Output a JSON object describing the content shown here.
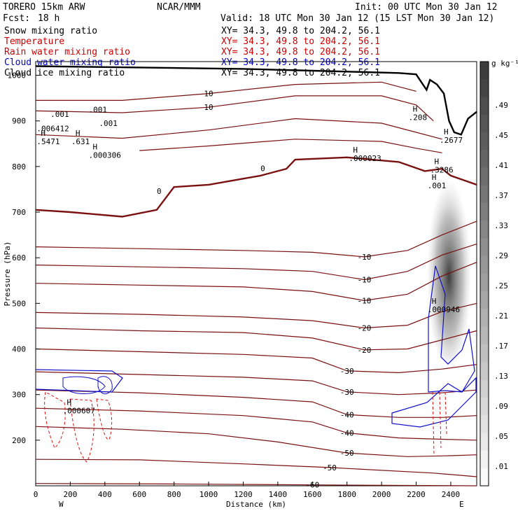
{
  "header": {
    "model": "TORERO  15km ARW",
    "org": "NCAR/MMM",
    "init": "Init: 00 UTC Mon 30 Jan 12",
    "fcst_label": "Fcst:",
    "fcst_value": "18 h",
    "valid": "Valid: 18 UTC Mon 30 Jan 12 (15 LST Mon 30 Jan 12)"
  },
  "legend_rows": [
    {
      "name": "Snow mixing ratio",
      "xy": "XY=  34.3, 49.8 to 204.2, 56.1",
      "color": "#000000"
    },
    {
      "name": "Temperature",
      "xy": "XY=  34.3, 49.8 to 204.2, 56.1",
      "color": "#cc0000"
    },
    {
      "name": "Rain water mixing ratio",
      "xy": "XY=  34.3, 49.8 to 204.2, 56.1",
      "color": "#cc0000"
    },
    {
      "name": "Cloud water mixing ratio",
      "xy": "XY=  34.3, 49.8 to 204.2, 56.1",
      "color": "#0000cc"
    },
    {
      "name": "Cloud ice mixing ratio",
      "xy": "XY=  34.3, 49.8 to 204.2, 56.1",
      "color": "#000000"
    }
  ],
  "colors": {
    "temperature": "#7a1010",
    "zero_isotherm": "#7a1010",
    "cloud_water": "#1010cc",
    "rain_water": "#dd1111",
    "terrain": "#000000"
  },
  "chart_data": {
    "type": "contour",
    "xlabel": "Distance (km)",
    "ylabel": "Pressure (hPa)",
    "xlim": [
      0,
      2550
    ],
    "ylim": [
      1030,
      100
    ],
    "x_ticks": [
      0,
      200,
      400,
      600,
      800,
      1000,
      1200,
      1400,
      1600,
      1800,
      2000,
      2200,
      2400
    ],
    "y_ticks": [
      200,
      300,
      400,
      500,
      600,
      700,
      800,
      900,
      1000
    ],
    "x_end_labels": {
      "left": "W",
      "right": "E"
    },
    "colorbar": {
      "unit": "g kg⁻¹",
      "labels": [
        ".49",
        ".45",
        ".41",
        ".37",
        ".33",
        ".29",
        ".25",
        ".21",
        ".17",
        ".13",
        ".09",
        ".05",
        ".01"
      ]
    },
    "temperature_contours": [
      {
        "label": "-60",
        "points": [
          [
            0,
            105
          ],
          [
            800,
            104
          ],
          [
            1600,
            102
          ],
          [
            2550,
            100
          ]
        ]
      },
      {
        "label": "-50",
        "points": [
          [
            0,
            158
          ],
          [
            600,
            157
          ],
          [
            1200,
            148
          ],
          [
            1700,
            140
          ],
          [
            2300,
            128
          ],
          [
            2550,
            120
          ]
        ]
      },
      {
        "label": "-50",
        "points": [
          [
            0,
            230
          ],
          [
            500,
            224
          ],
          [
            1000,
            214
          ],
          [
            1400,
            196
          ],
          [
            1800,
            172
          ],
          [
            2150,
            164
          ],
          [
            2400,
            166
          ],
          [
            2550,
            168
          ]
        ]
      },
      {
        "label": "-40",
        "points": [
          [
            0,
            270
          ],
          [
            600,
            264
          ],
          [
            1200,
            254
          ],
          [
            1600,
            240
          ],
          [
            1800,
            216
          ],
          [
            2100,
            205
          ],
          [
            2350,
            202
          ],
          [
            2550,
            200
          ]
        ]
      },
      {
        "label": "-40",
        "points": [
          [
            0,
            310
          ],
          [
            600,
            304
          ],
          [
            1200,
            294
          ],
          [
            1600,
            284
          ],
          [
            1800,
            256
          ],
          [
            2100,
            250
          ],
          [
            2350,
            250
          ],
          [
            2550,
            254
          ]
        ]
      },
      {
        "label": "-30",
        "points": [
          [
            0,
            350
          ],
          [
            600,
            344
          ],
          [
            1200,
            338
          ],
          [
            1600,
            330
          ],
          [
            1800,
            306
          ],
          [
            2100,
            300
          ],
          [
            2350,
            304
          ],
          [
            2550,
            310
          ]
        ]
      },
      {
        "label": "-30",
        "points": [
          [
            0,
            400
          ],
          [
            600,
            394
          ],
          [
            1200,
            388
          ],
          [
            1600,
            380
          ],
          [
            1800,
            352
          ],
          [
            2100,
            348
          ],
          [
            2350,
            356
          ],
          [
            2550,
            366
          ]
        ]
      },
      {
        "label": "-20",
        "points": [
          [
            0,
            446
          ],
          [
            600,
            440
          ],
          [
            1200,
            436
          ],
          [
            1600,
            424
          ],
          [
            1900,
            398
          ],
          [
            2150,
            400
          ],
          [
            2350,
            420
          ],
          [
            2550,
            440
          ]
        ]
      },
      {
        "label": "-20",
        "points": [
          [
            0,
            480
          ],
          [
            600,
            476
          ],
          [
            1200,
            470
          ],
          [
            1600,
            462
          ],
          [
            1900,
            446
          ],
          [
            2150,
            452
          ],
          [
            2350,
            482
          ],
          [
            2550,
            500
          ]
        ]
      },
      {
        "label": "-10",
        "points": [
          [
            0,
            544
          ],
          [
            600,
            540
          ],
          [
            1200,
            536
          ],
          [
            1600,
            526
          ],
          [
            1900,
            506
          ],
          [
            2150,
            520
          ],
          [
            2350,
            560
          ],
          [
            2550,
            590
          ]
        ]
      },
      {
        "label": "-10",
        "points": [
          [
            0,
            584
          ],
          [
            600,
            580
          ],
          [
            1200,
            576
          ],
          [
            1600,
            570
          ],
          [
            1900,
            552
          ],
          [
            2150,
            570
          ],
          [
            2350,
            606
          ],
          [
            2550,
            630
          ]
        ]
      },
      {
        "label": "-10",
        "points": [
          [
            0,
            624
          ],
          [
            600,
            620
          ],
          [
            1200,
            616
          ],
          [
            1600,
            612
          ],
          [
            1900,
            602
          ],
          [
            2150,
            616
          ],
          [
            2350,
            650
          ],
          [
            2550,
            680
          ]
        ]
      }
    ],
    "zero_isotherm": {
      "label": "0",
      "points": [
        [
          0,
          705
        ],
        [
          200,
          700
        ],
        [
          500,
          690
        ],
        [
          700,
          705
        ],
        [
          800,
          755
        ],
        [
          1000,
          760
        ],
        [
          1300,
          780
        ],
        [
          1450,
          795
        ],
        [
          1500,
          815
        ],
        [
          1800,
          820
        ],
        [
          2100,
          810
        ],
        [
          2250,
          790
        ],
        [
          2350,
          795
        ],
        [
          2400,
          780
        ],
        [
          2550,
          760
        ]
      ]
    },
    "warm_contours": [
      {
        "label": "10",
        "points": [
          [
            0,
            922
          ],
          [
            500,
            918
          ],
          [
            1000,
            930
          ],
          [
            1500,
            955
          ],
          [
            2000,
            955
          ],
          [
            2200,
            935
          ],
          [
            2300,
            900
          ]
        ]
      },
      {
        "label": "10",
        "points": [
          [
            0,
            945
          ],
          [
            500,
            945
          ],
          [
            1000,
            960
          ],
          [
            1500,
            980
          ],
          [
            2000,
            985
          ],
          [
            2200,
            965
          ]
        ]
      },
      {
        "label": "",
        "points": [
          [
            0,
            870
          ],
          [
            500,
            862
          ],
          [
            1000,
            880
          ],
          [
            1500,
            905
          ],
          [
            2000,
            895
          ],
          [
            2200,
            875
          ],
          [
            2350,
            860
          ]
        ]
      },
      {
        "label": "",
        "points": [
          [
            600,
            835
          ],
          [
            1000,
            845
          ],
          [
            1500,
            860
          ],
          [
            2000,
            855
          ],
          [
            2200,
            840
          ],
          [
            2350,
            830
          ]
        ]
      }
    ],
    "annotations": [
      {
        "text": "H",
        "sub": ".000607",
        "x": 180,
        "y": 262
      },
      {
        "text": "H",
        "sub": ".000946",
        "x": 2290,
        "y": 484
      },
      {
        "text": "H",
        "sub": ".000023",
        "x": 1835,
        "y": 815
      },
      {
        "text": "H",
        "sub": ".000306",
        "x": 330,
        "y": 822
      },
      {
        "text": "H",
        "sub": ".001",
        "x": 2290,
        "y": 755
      },
      {
        "text": "H",
        "sub": ".3286",
        "x": 2305,
        "y": 790
      },
      {
        "text": "H",
        "sub": ".2677",
        "x": 2360,
        "y": 855
      },
      {
        "text": "H",
        "sub": ".208",
        "x": 2180,
        "y": 905
      },
      {
        "text": "H",
        "sub": ".5471",
        "x": 30,
        "y": 852
      },
      {
        "text": "H",
        "sub": ".631",
        "x": 230,
        "y": 852
      },
      {
        "text": "",
        "sub": ".006412",
        "x": 30,
        "y": 880
      },
      {
        "text": "",
        "sub": ".001",
        "x": 110,
        "y": 912
      },
      {
        "text": "",
        "sub": ".001",
        "x": 330,
        "y": 922
      },
      {
        "text": "",
        "sub": ".001",
        "x": 390,
        "y": 892
      }
    ],
    "terrain": [
      [
        0,
        1020
      ],
      [
        400,
        1018
      ],
      [
        800,
        1016
      ],
      [
        1200,
        1014
      ],
      [
        1600,
        1010
      ],
      [
        1800,
        1008
      ],
      [
        2100,
        1005
      ],
      [
        2200,
        1002
      ],
      [
        2230,
        985
      ],
      [
        2260,
        968
      ],
      [
        2280,
        990
      ],
      [
        2320,
        980
      ],
      [
        2360,
        960
      ],
      [
        2390,
        900
      ],
      [
        2420,
        875
      ],
      [
        2460,
        870
      ],
      [
        2500,
        905
      ],
      [
        2550,
        920
      ]
    ]
  }
}
